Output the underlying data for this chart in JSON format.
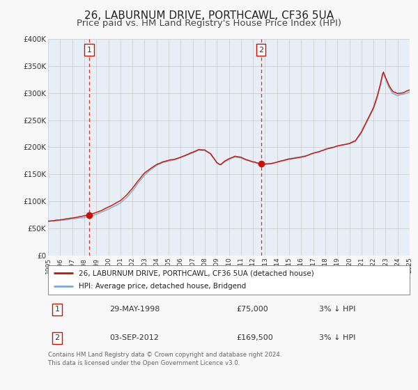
{
  "title": "26, LABURNUM DRIVE, PORTHCAWL, CF36 5UA",
  "subtitle": "Price paid vs. HM Land Registry's House Price Index (HPI)",
  "title_fontsize": 11,
  "subtitle_fontsize": 9.5,
  "background_color": "#f8f8f8",
  "plot_bg_color": "#e8eef5",
  "red_line_color": "#cc1100",
  "blue_line_color": "#7aabcc",
  "grid_color": "#cccccc",
  "sale1_date_year": 1998.41,
  "sale1_price": 75000,
  "sale2_date_year": 2012.67,
  "sale2_price": 169500,
  "ylabel_ticks": [
    "£0",
    "£50K",
    "£100K",
    "£150K",
    "£200K",
    "£250K",
    "£300K",
    "£350K",
    "£400K"
  ],
  "ylabel_values": [
    0,
    50000,
    100000,
    150000,
    200000,
    250000,
    300000,
    350000,
    400000
  ],
  "legend_label_red": "26, LABURNUM DRIVE, PORTHCAWL, CF36 5UA (detached house)",
  "legend_label_blue": "HPI: Average price, detached house, Bridgend",
  "annotation1_label": "1",
  "annotation1_date": "29-MAY-1998",
  "annotation1_price": "£75,000",
  "annotation1_pct": "3% ↓ HPI",
  "annotation2_label": "2",
  "annotation2_date": "03-SEP-2012",
  "annotation2_price": "£169,500",
  "annotation2_pct": "3% ↓ HPI",
  "footer_text": "Contains HM Land Registry data © Crown copyright and database right 2024.\nThis data is licensed under the Open Government Licence v3.0.",
  "xmin": 1995,
  "xmax": 2025,
  "ymin": 0,
  "ymax": 400000
}
